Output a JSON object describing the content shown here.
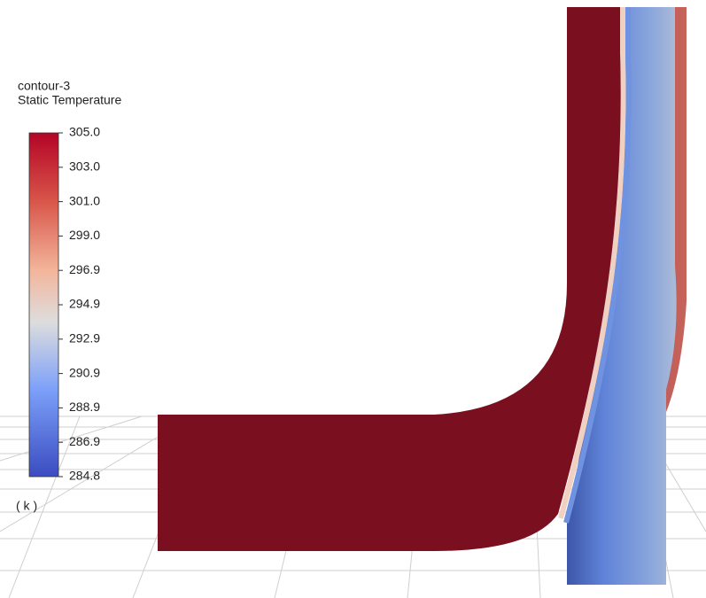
{
  "legend": {
    "title": [
      "contour-3",
      "Static Temperature"
    ],
    "ticks": [
      "305.0",
      "303.0",
      "301.0",
      "299.0",
      "296.9",
      "294.9",
      "292.9",
      "290.9",
      "288.9",
      "286.9",
      "284.8"
    ],
    "unit": "( k )"
  }
}
